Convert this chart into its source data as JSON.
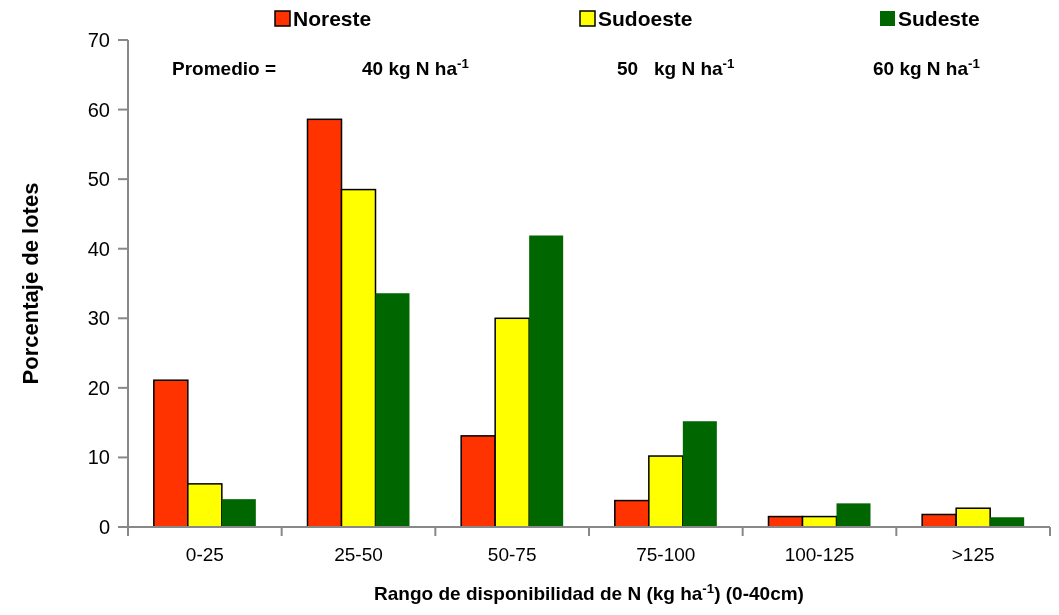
{
  "chart_data": {
    "type": "bar",
    "xlabel": "Rango de disponibilidad de N (kg ha$^{-1}$) (0-40cm)",
    "ylabel": "Porcentaje de lotes",
    "categories": [
      "0-25",
      "25-50",
      "50-75",
      "75-100",
      "100-125",
      ">125"
    ],
    "series": [
      {
        "name": "Noreste",
        "color": "#ff3300",
        "values": [
          21.1,
          58.6,
          13.1,
          3.8,
          1.5,
          1.8
        ]
      },
      {
        "name": "Sudoeste",
        "color": "#ffff00",
        "values": [
          6.2,
          48.5,
          30.0,
          10.2,
          1.5,
          2.7
        ]
      },
      {
        "name": "Sudeste",
        "color": "#006600",
        "values": [
          4.0,
          33.6,
          41.9,
          15.2,
          3.4,
          1.4
        ]
      }
    ],
    "ylim": [
      0,
      70
    ],
    "yticks": [
      0,
      10,
      20,
      30,
      40,
      50,
      60,
      70
    ],
    "legend": "top",
    "annotations": [
      "Promedio =",
      "40 kg N ha$^{-1}$",
      "50   kg N ha$^{-1}$",
      "60 kg N ha$^{-1}$"
    ]
  }
}
